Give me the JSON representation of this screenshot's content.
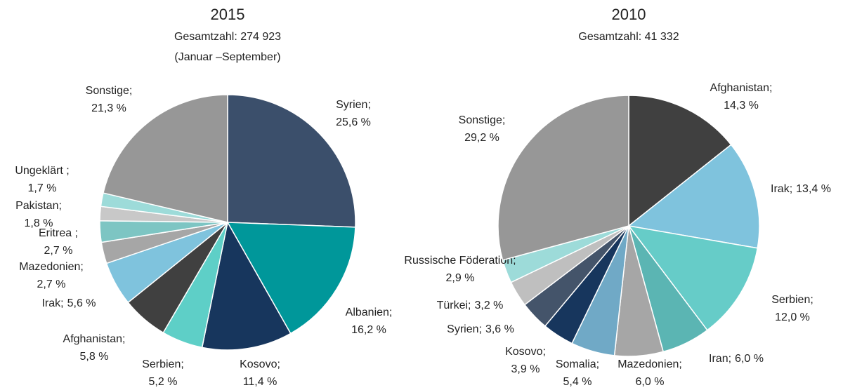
{
  "chart_data": [
    {
      "type": "pie",
      "title": "2015",
      "subtitle": "Gesamtzahl: 274 923",
      "note": "(Januar –September)",
      "categories": [
        "Syrien;",
        "Albanien;",
        "Kosovo;",
        "Serbien;",
        "Afghanistan;",
        "Irak;",
        "Mazedonien;",
        "Eritrea ;",
        "Pakistan;",
        "Ungeklärt ;",
        "Sonstige;"
      ],
      "values": [
        25.6,
        16.2,
        11.4,
        5.2,
        5.8,
        5.6,
        2.7,
        2.7,
        1.8,
        1.7,
        21.3
      ],
      "value_labels": [
        "25,6 %",
        "16,2 %",
        "11,4 %",
        "5,2 %",
        "5,8 %",
        "5,6 %",
        "2,7 %",
        "2,7 %",
        "1,8 %",
        "1,7 %",
        "21,3 %"
      ],
      "colors": [
        "#3b4f6b",
        "#00979a",
        "#17365d",
        "#5ecfc7",
        "#404040",
        "#7fc3dd",
        "#a6a6a6",
        "#7dc5c3",
        "#c8c8c8",
        "#9ddbd9",
        "#979797"
      ]
    },
    {
      "type": "pie",
      "title": "2010",
      "subtitle": "Gesamtzahl: 41 332",
      "categories": [
        "Afghanistan;",
        "Irak;",
        "Serbien;",
        "Iran;",
        "Mazedonien;",
        "Somalia;",
        "Kosovo;",
        "Syrien;",
        "Türkei;",
        "Russische Föderation;",
        "Sonstige;"
      ],
      "values": [
        14.3,
        13.4,
        12.0,
        6.0,
        6.0,
        5.4,
        3.9,
        3.6,
        3.2,
        2.9,
        29.2
      ],
      "value_labels": [
        "14,3 %",
        "13,4 %",
        "12,0 %",
        "6,0 %",
        "6,0 %",
        "5,4 %",
        "3,9 %",
        "3,6 %",
        "3,2 %",
        "2,9 %",
        "29,2 %"
      ],
      "colors": [
        "#404040",
        "#7fc3dd",
        "#66ccc8",
        "#5bb5b3",
        "#a6a6a6",
        "#70a9c6",
        "#17365d",
        "#44546a",
        "#bfbfbf",
        "#9ddbd9",
        "#979797"
      ]
    }
  ]
}
